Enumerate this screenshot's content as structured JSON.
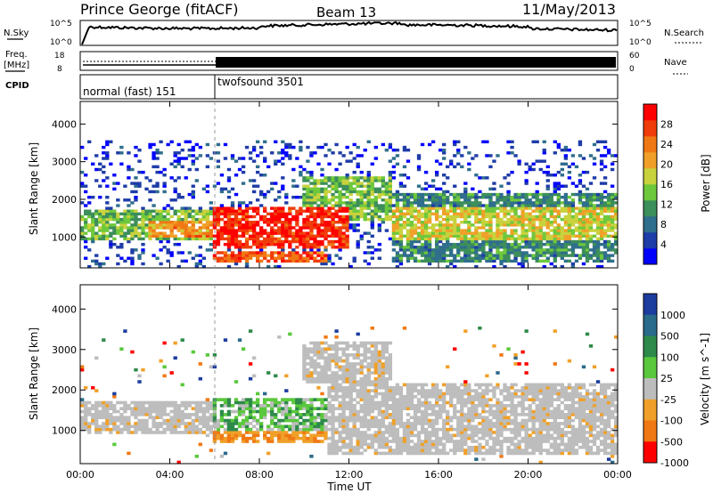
{
  "header": {
    "station": "Prince George (fitACF)",
    "beam": "Beam 13",
    "date": "11/May/2013"
  },
  "top_panels": {
    "nsky_label": "N.Sky",
    "nsky_ticks": [
      "10^5",
      "10^0"
    ],
    "nsearch_label": "N.Search",
    "nsearch_ticks": [
      "10^5",
      "10^0"
    ],
    "freq_label_1": "Freq.",
    "freq_label_2": "[MHz]",
    "freq_ticks": [
      "18",
      "8"
    ],
    "nave_label": "Nave",
    "nave_ticks": [
      "60",
      "0"
    ],
    "cpid_label": "CPID",
    "cpid_segments": [
      {
        "label": "normal (fast) 151",
        "start_hour": 0,
        "end_hour": 6
      },
      {
        "label": "twofsound 3501",
        "start_hour": 6,
        "end_hour": 24
      }
    ]
  },
  "chart_data": [
    {
      "type": "heatmap",
      "name": "power",
      "ylabel": "Slant Range [km]",
      "yticks": [
        1000,
        2000,
        3000,
        4000
      ],
      "ylim": [
        180,
        4600
      ],
      "xlim": [
        0,
        24
      ],
      "colorbar": {
        "label": "Power [dB]",
        "ticks": [
          4,
          8,
          12,
          16,
          20,
          24,
          28
        ],
        "range": [
          0,
          32
        ],
        "colors": [
          "#0000ff",
          "#1e3ca8",
          "#2f6e8c",
          "#3c8e5a",
          "#6ec83c",
          "#c8d23c",
          "#f0a028",
          "#f07814",
          "#f03c0a",
          "#ff0000"
        ]
      },
      "regions": [
        {
          "x": [
            0,
            6
          ],
          "y": [
            900,
            1700
          ],
          "level": 14
        },
        {
          "x": [
            3,
            6
          ],
          "y": [
            1000,
            1400
          ],
          "level": 22
        },
        {
          "x": [
            6,
            12
          ],
          "y": [
            700,
            1800
          ],
          "level": 29
        },
        {
          "x": [
            6,
            11
          ],
          "y": [
            300,
            600
          ],
          "level": 26
        },
        {
          "x": [
            10,
            14
          ],
          "y": [
            1400,
            2600
          ],
          "level": 14
        },
        {
          "x": [
            14,
            24
          ],
          "y": [
            300,
            2200
          ],
          "level": 10
        },
        {
          "x": [
            14,
            24
          ],
          "y": [
            900,
            1800
          ],
          "level": 18
        },
        {
          "x": [
            0,
            24
          ],
          "y": [
            200,
            3600
          ],
          "level": 4
        }
      ]
    },
    {
      "type": "heatmap",
      "name": "velocity",
      "ylabel": "Slant Range [km]",
      "yticks": [
        1000,
        2000,
        3000,
        4000
      ],
      "ylim": [
        180,
        4600
      ],
      "xlim": [
        0,
        24
      ],
      "colorbar": {
        "label": "Velocity [m s^-1]",
        "ticks": [
          "1000",
          "500",
          "100",
          "25",
          "-25",
          "-100",
          "-500",
          "-1000"
        ],
        "colors": [
          "#1c3c9e",
          "#2a6a8a",
          "#2e8a4a",
          "#5ac83c",
          "#bdbdbd",
          "#f0a028",
          "#f07814",
          "#ff0000"
        ]
      },
      "regions": [
        {
          "x": [
            0,
            6
          ],
          "y": [
            900,
            1700
          ],
          "class": "ground"
        },
        {
          "x": [
            6,
            11
          ],
          "y": [
            800,
            1800
          ],
          "class": "positive"
        },
        {
          "x": [
            6,
            11
          ],
          "y": [
            700,
            1000
          ],
          "class": "negative"
        },
        {
          "x": [
            11,
            24
          ],
          "y": [
            400,
            2200
          ],
          "class": "ground"
        },
        {
          "x": [
            10,
            14
          ],
          "y": [
            2200,
            3200
          ],
          "class": "ground"
        }
      ]
    }
  ],
  "xaxis": {
    "label": "Time UT",
    "ticks": [
      "00:00",
      "04:00",
      "08:00",
      "12:00",
      "16:00",
      "20:00",
      "00:00"
    ],
    "values": [
      0,
      4,
      8,
      12,
      16,
      20,
      24
    ]
  }
}
